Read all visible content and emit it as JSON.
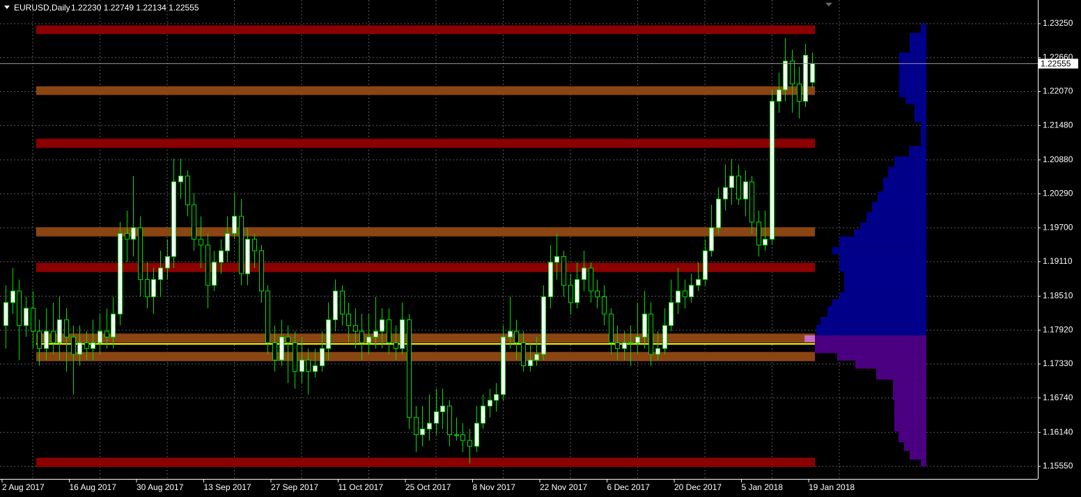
{
  "chart_data": {
    "type": "candlestick",
    "title": "EURUSD,Daily",
    "subtitle": "1.22230 1.22749 1.22134 1.22555",
    "categories": [
      "2 Aug 2017",
      null,
      null,
      null,
      null,
      null,
      null,
      null,
      null,
      null,
      "16 Aug 2017",
      null,
      null,
      null,
      null,
      null,
      null,
      null,
      null,
      null,
      "30 Aug 2017",
      null,
      null,
      null,
      null,
      null,
      null,
      null,
      null,
      null,
      "13 Sep 2017",
      null,
      null,
      null,
      null,
      null,
      null,
      null,
      null,
      null,
      "27 Sep 2017",
      null,
      null,
      null,
      null,
      null,
      null,
      null,
      null,
      null,
      "11 Oct 2017",
      null,
      null,
      null,
      null,
      null,
      null,
      null,
      null,
      null,
      "25 Oct 2017",
      null,
      null,
      null,
      null,
      null,
      null,
      null,
      null,
      null,
      "8 Nov 2017",
      null,
      null,
      null,
      null,
      null,
      null,
      null,
      null,
      null,
      "22 Nov 2017",
      null,
      null,
      null,
      null,
      null,
      null,
      null,
      null,
      null,
      "6 Dec 2017",
      null,
      null,
      null,
      null,
      null,
      null,
      null,
      null,
      null,
      "20 Dec 2017",
      null,
      null,
      null,
      null,
      null,
      null,
      null,
      null,
      null,
      "5 Jan 2018",
      null,
      null,
      null,
      null,
      null,
      null,
      null,
      null,
      null,
      "19 Jan 2018"
    ],
    "open": [
      1.18,
      1.184,
      1.186,
      1.18,
      1.183,
      1.179,
      1.176,
      1.179,
      1.177,
      1.181,
      1.178,
      1.175,
      1.177,
      1.176,
      1.177,
      1.179,
      1.178,
      1.182,
      1.196,
      1.195,
      1.197,
      1.188,
      1.185,
      1.188,
      1.19,
      1.192,
      1.205,
      1.206,
      1.201,
      1.195,
      1.194,
      1.187,
      1.191,
      1.193,
      1.196,
      1.199,
      1.189,
      1.195,
      1.193,
      1.186,
      1.177,
      1.174,
      1.178,
      1.177,
      1.172,
      1.174,
      1.172,
      1.173,
      1.176,
      1.181,
      1.186,
      1.182,
      1.18,
      1.179,
      1.177,
      1.178,
      1.179,
      1.181,
      1.177,
      1.176,
      1.181,
      1.164,
      1.161,
      1.162,
      1.163,
      1.165,
      1.166,
      1.161,
      1.161,
      1.16,
      1.159,
      1.163,
      1.166,
      1.167,
      1.168,
      1.178,
      1.179,
      1.177,
      1.173,
      1.174,
      1.175,
      1.185,
      1.191,
      1.192,
      1.187,
      1.184,
      1.188,
      1.19,
      1.186,
      1.185,
      1.182,
      1.177,
      1.176,
      1.177,
      1.177,
      1.178,
      1.182,
      1.175,
      1.176,
      1.18,
      1.184,
      1.186,
      1.185,
      1.187,
      1.188,
      1.193,
      1.197,
      1.202,
      1.204,
      1.206,
      1.202,
      1.205,
      1.198,
      1.194,
      1.195,
      1.219,
      1.221,
      1.226,
      1.222,
      1.219,
      1.2223
    ],
    "high": [
      1.187,
      1.19,
      1.188,
      1.185,
      1.186,
      1.181,
      1.183,
      1.184,
      1.185,
      1.183,
      1.18,
      1.18,
      1.179,
      1.181,
      1.182,
      1.183,
      1.185,
      1.198,
      1.2,
      1.206,
      1.199,
      1.191,
      1.19,
      1.193,
      1.195,
      1.209,
      1.209,
      1.207,
      1.203,
      1.199,
      1.196,
      1.193,
      1.195,
      1.199,
      1.203,
      1.202,
      1.197,
      1.196,
      1.194,
      1.187,
      1.18,
      1.181,
      1.18,
      1.179,
      1.178,
      1.176,
      1.176,
      1.179,
      1.184,
      1.188,
      1.187,
      1.184,
      1.183,
      1.182,
      1.182,
      1.185,
      1.183,
      1.183,
      1.18,
      1.184,
      1.182,
      1.166,
      1.166,
      1.168,
      1.169,
      1.169,
      1.167,
      1.164,
      1.163,
      1.162,
      1.166,
      1.168,
      1.169,
      1.17,
      1.18,
      1.185,
      1.181,
      1.179,
      1.177,
      1.178,
      1.187,
      1.194,
      1.196,
      1.193,
      1.189,
      1.191,
      1.193,
      1.191,
      1.188,
      1.187,
      1.183,
      1.18,
      1.179,
      1.18,
      1.184,
      1.186,
      1.184,
      1.179,
      1.183,
      1.188,
      1.19,
      1.188,
      1.189,
      1.191,
      1.195,
      1.201,
      1.204,
      1.208,
      1.209,
      1.208,
      1.207,
      1.206,
      1.2,
      1.2,
      1.221,
      1.224,
      1.23,
      1.228,
      1.225,
      1.229,
      1.22749
    ],
    "low": [
      1.176,
      1.182,
      1.174,
      1.178,
      1.176,
      1.173,
      1.174,
      1.175,
      1.174,
      1.172,
      1.168,
      1.173,
      1.174,
      1.174,
      1.175,
      1.176,
      1.176,
      1.18,
      1.191,
      1.192,
      1.185,
      1.183,
      1.182,
      1.185,
      1.188,
      1.19,
      1.202,
      1.199,
      1.193,
      1.19,
      1.183,
      1.186,
      1.189,
      1.191,
      1.195,
      1.187,
      1.187,
      1.19,
      1.184,
      1.175,
      1.172,
      1.173,
      1.17,
      1.169,
      1.17,
      1.168,
      1.171,
      1.172,
      1.174,
      1.179,
      1.18,
      1.177,
      1.176,
      1.174,
      1.175,
      1.176,
      1.176,
      1.175,
      1.174,
      1.175,
      1.162,
      1.158,
      1.159,
      1.16,
      1.161,
      1.162,
      1.159,
      1.16,
      1.158,
      1.156,
      1.158,
      1.162,
      1.164,
      1.165,
      1.167,
      1.176,
      1.174,
      1.172,
      1.172,
      1.173,
      1.174,
      1.183,
      1.188,
      1.185,
      1.182,
      1.183,
      1.186,
      1.184,
      1.183,
      1.18,
      1.175,
      1.174,
      1.174,
      1.173,
      1.175,
      1.176,
      1.173,
      1.174,
      1.175,
      1.179,
      1.182,
      1.183,
      1.184,
      1.186,
      1.187,
      1.192,
      1.196,
      1.2,
      1.201,
      1.201,
      1.199,
      1.196,
      1.192,
      1.193,
      1.194,
      1.217,
      1.219,
      1.217,
      1.216,
      1.218,
      1.22134
    ],
    "close": [
      1.184,
      1.186,
      1.18,
      1.183,
      1.179,
      1.176,
      1.179,
      1.177,
      1.181,
      1.178,
      1.175,
      1.177,
      1.176,
      1.177,
      1.179,
      1.178,
      1.182,
      1.196,
      1.195,
      1.197,
      1.188,
      1.185,
      1.188,
      1.19,
      1.192,
      1.205,
      1.206,
      1.201,
      1.195,
      1.194,
      1.187,
      1.191,
      1.193,
      1.196,
      1.199,
      1.189,
      1.195,
      1.193,
      1.186,
      1.177,
      1.174,
      1.178,
      1.177,
      1.172,
      1.174,
      1.172,
      1.173,
      1.176,
      1.181,
      1.186,
      1.182,
      1.18,
      1.179,
      1.177,
      1.178,
      1.179,
      1.181,
      1.177,
      1.176,
      1.181,
      1.164,
      1.161,
      1.162,
      1.163,
      1.165,
      1.166,
      1.161,
      1.161,
      1.16,
      1.159,
      1.163,
      1.166,
      1.167,
      1.168,
      1.178,
      1.179,
      1.177,
      1.173,
      1.174,
      1.175,
      1.185,
      1.191,
      1.192,
      1.187,
      1.184,
      1.188,
      1.19,
      1.186,
      1.185,
      1.182,
      1.177,
      1.176,
      1.177,
      1.177,
      1.178,
      1.182,
      1.175,
      1.176,
      1.18,
      1.184,
      1.186,
      1.185,
      1.187,
      1.188,
      1.193,
      1.197,
      1.202,
      1.204,
      1.206,
      1.202,
      1.205,
      1.198,
      1.194,
      1.195,
      1.219,
      1.221,
      1.226,
      1.222,
      1.219,
      1.227,
      1.22555
    ],
    "color_up": "#ffffff",
    "color_down": "#000000",
    "wick_color": "#00e000",
    "ylim": [
      1.15332,
      1.23662
    ],
    "yticks": [
      {
        "value": 1.2325,
        "label": "1.23250"
      },
      {
        "value": 1.2266,
        "label": "1.22660"
      },
      {
        "value": 1.2207,
        "label": "1.22070"
      },
      {
        "value": 1.2148,
        "label": "1.21480"
      },
      {
        "value": 1.2088,
        "label": "1.20880"
      },
      {
        "value": 1.2029,
        "label": "1.20290"
      },
      {
        "value": 1.197,
        "label": "1.19700"
      },
      {
        "value": 1.1911,
        "label": "1.19110"
      },
      {
        "value": 1.1851,
        "label": "1.18510"
      },
      {
        "value": 1.1792,
        "label": "1.17920"
      },
      {
        "value": 1.1733,
        "label": "1.17330"
      },
      {
        "value": 1.1674,
        "label": "1.16740"
      },
      {
        "value": 1.1614,
        "label": "1.16140"
      },
      {
        "value": 1.1555,
        "label": "1.15550"
      }
    ],
    "grid": true,
    "last_price": {
      "value": 1.22555,
      "label": "1.22555"
    },
    "zones": [
      {
        "low": 1.2307,
        "high": 1.2322,
        "color": "#8b0000"
      },
      {
        "low": 1.2201,
        "high": 1.2216,
        "color": "#8b4513"
      },
      {
        "low": 1.2109,
        "high": 1.2125,
        "color": "#8b0000"
      },
      {
        "low": 1.1955,
        "high": 1.1971,
        "color": "#8b4513"
      },
      {
        "low": 1.1893,
        "high": 1.1909,
        "color": "#8b0000"
      },
      {
        "low": 1.177,
        "high": 1.1786,
        "color": "#8b4513"
      },
      {
        "low": 1.1738,
        "high": 1.1754,
        "color": "#8b4513"
      },
      {
        "low": 1.1554,
        "high": 1.157,
        "color": "#8b0000"
      }
    ],
    "level_line": {
      "value": 1.1768,
      "color": "#ffff00"
    },
    "profile": {
      "bins": [
        1.1555,
        1.1567,
        1.1582,
        1.1597,
        1.1616,
        1.167,
        1.1706,
        1.1725,
        1.1739,
        1.1752,
        1.1771,
        1.1783,
        1.1801,
        1.1815,
        1.1834,
        1.1846,
        1.1858,
        1.1894,
        1.1924,
        1.1936,
        1.1955,
        1.1967,
        1.1979,
        1.1997,
        1.2015,
        1.2033,
        1.2057,
        1.2076,
        1.2094,
        1.2112,
        1.2154,
        1.2185,
        1.2197,
        1.2275,
        1.2309,
        1.2325
      ],
      "counts": [
        8,
        24,
        32,
        40,
        46,
        48,
        72,
        102,
        128,
        160,
        161,
        158,
        152,
        142,
        135,
        125,
        118,
        125,
        135,
        125,
        104,
        95,
        86,
        78,
        70,
        62,
        55,
        46,
        25,
        8,
        17,
        30,
        39,
        24,
        8
      ],
      "color_above": "#00008b",
      "color_below": "#4b0082",
      "split": 1.1783,
      "poc_color": "#c86ec8"
    }
  }
}
